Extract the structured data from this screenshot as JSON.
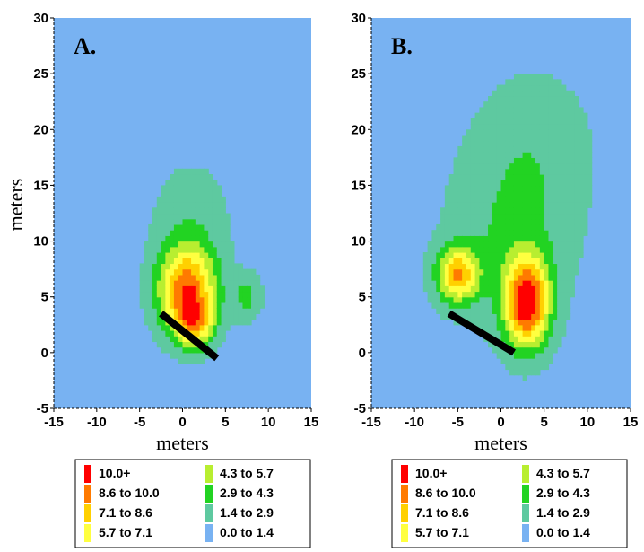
{
  "chart_data": [
    {
      "type": "heatmap",
      "panel_label": "A.",
      "xlabel": "meters",
      "ylabel": "meters",
      "xlim": [
        -15,
        15
      ],
      "ylim": [
        -5,
        30
      ],
      "x_ticks": [
        "-15",
        "-10",
        "-5",
        "0",
        "5",
        "10",
        "15"
      ],
      "y_ticks": [
        "-5",
        "0",
        "5",
        "10",
        "15",
        "20",
        "25",
        "30"
      ],
      "hotspots": [
        {
          "x": 0.5,
          "y": 5.5,
          "peak": 9.0,
          "sx": 2.4,
          "sy": 2.8
        },
        {
          "x": 1.5,
          "y": 2.5,
          "peak": 4.5,
          "sx": 1.5,
          "sy": 1.5
        },
        {
          "x": 7.5,
          "y": 5.0,
          "peak": 2.6,
          "sx": 1.2,
          "sy": 1.5
        },
        {
          "x": 1.0,
          "y": 12.0,
          "peak": 1.6,
          "sx": 3.5,
          "sy": 4.0
        }
      ],
      "line": {
        "x1": -2.5,
        "y1": 3.5,
        "x2": 4.0,
        "y2": -0.5
      },
      "legend": [
        {
          "label": "10.0+",
          "color": "#ff0000"
        },
        {
          "label": "8.6 to 10.0",
          "color": "#ff7a00"
        },
        {
          "label": "7.1 to 8.6",
          "color": "#ffd000"
        },
        {
          "label": "5.7 to 7.1",
          "color": "#ffff40"
        },
        {
          "label": "4.3 to 5.7",
          "color": "#b8ee30"
        },
        {
          "label": "2.9 to 4.3",
          "color": "#22d322"
        },
        {
          "label": "1.4 to 2.9",
          "color": "#5ec9a0"
        },
        {
          "label": "0.0 to 1.4",
          "color": "#78b2f2"
        }
      ]
    },
    {
      "type": "heatmap",
      "panel_label": "B.",
      "xlabel": "meters",
      "ylabel": "",
      "xlim": [
        -15,
        15
      ],
      "ylim": [
        -5,
        30
      ],
      "x_ticks": [
        "-15",
        "-10",
        "-5",
        "0",
        "5",
        "10",
        "15"
      ],
      "y_ticks": [
        "-5",
        "0",
        "5",
        "10",
        "15",
        "20",
        "25",
        "30"
      ],
      "hotspots": [
        {
          "x": 3.0,
          "y": 4.5,
          "peak": 10.0,
          "sx": 1.8,
          "sy": 2.8
        },
        {
          "x": -5.0,
          "y": 7.0,
          "peak": 7.2,
          "sx": 1.7,
          "sy": 1.7
        },
        {
          "x": 1.0,
          "y": 10.0,
          "peak": 2.2,
          "sx": 5.5,
          "sy": 6.0
        },
        {
          "x": 4.0,
          "y": 19.0,
          "peak": 1.5,
          "sx": 5.0,
          "sy": 5.0
        }
      ],
      "line": {
        "x1": -6.0,
        "y1": 3.5,
        "x2": 1.5,
        "y2": 0.0
      },
      "legend": [
        {
          "label": "10.0+",
          "color": "#ff0000"
        },
        {
          "label": "8.6 to 10.0",
          "color": "#ff7a00"
        },
        {
          "label": "7.1 to 8.6",
          "color": "#ffd000"
        },
        {
          "label": "5.7 to 7.1",
          "color": "#ffff40"
        },
        {
          "label": "4.3 to 5.7",
          "color": "#b8ee30"
        },
        {
          "label": "2.9 to 4.3",
          "color": "#22d322"
        },
        {
          "label": "1.4 to 2.9",
          "color": "#5ec9a0"
        },
        {
          "label": "0.0 to 1.4",
          "color": "#78b2f2"
        }
      ]
    }
  ]
}
